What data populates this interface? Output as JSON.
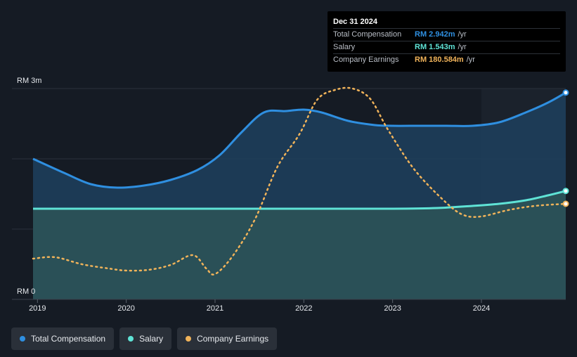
{
  "colors": {
    "background": "#151b24",
    "total_compensation": "#2f8fe0",
    "salary": "#5fe3d6",
    "company_earnings": "#f0b35a",
    "forecast_shade": "#1b222c"
  },
  "tooltip": {
    "date": "Dec 31 2024",
    "rows": [
      {
        "label": "Total Compensation",
        "value": "RM 2.942m",
        "unit": "/yr",
        "color": "#2f8fe0"
      },
      {
        "label": "Salary",
        "value": "RM 1.543m",
        "unit": "/yr",
        "color": "#5fe3d6"
      },
      {
        "label": "Company Earnings",
        "value": "RM 180.584m",
        "unit": "/yr",
        "color": "#f0b35a"
      }
    ]
  },
  "legend": [
    {
      "label": "Total Compensation",
      "color": "#2f8fe0"
    },
    {
      "label": "Salary",
      "color": "#5fe3d6"
    },
    {
      "label": "Company Earnings",
      "color": "#f0b35a"
    }
  ],
  "chart_data": {
    "type": "area",
    "y_axis_labels": {
      "top": "RM 3m",
      "bottom": "RM 0"
    },
    "ylim_millions": [
      0,
      3
    ],
    "xlim": [
      2018.95,
      2024.95
    ],
    "x_ticks": [
      2019,
      2020,
      2021,
      2022,
      2023,
      2024
    ],
    "x_tick_labels": [
      "2019",
      "2020",
      "2021",
      "2022",
      "2023",
      "2024"
    ],
    "forecast_region_start": 2024.0,
    "series": [
      {
        "name": "Total Compensation",
        "unit": "RM m",
        "x": [
          2018.95,
          2019.3,
          2019.6,
          2019.9,
          2020.2,
          2020.5,
          2020.8,
          2021.05,
          2021.3,
          2021.55,
          2021.8,
          2022.0,
          2022.2,
          2022.5,
          2022.8,
          2023.0,
          2023.3,
          2023.6,
          2023.9,
          2024.2,
          2024.5,
          2024.75,
          2024.95
        ],
        "values": [
          2.0,
          1.8,
          1.64,
          1.59,
          1.62,
          1.7,
          1.84,
          2.05,
          2.38,
          2.66,
          2.68,
          2.7,
          2.66,
          2.54,
          2.48,
          2.47,
          2.47,
          2.47,
          2.47,
          2.52,
          2.66,
          2.8,
          2.942
        ]
      },
      {
        "name": "Salary",
        "unit": "RM m",
        "x": [
          2018.95,
          2020.0,
          2021.0,
          2022.0,
          2023.0,
          2023.5,
          2023.9,
          2024.2,
          2024.5,
          2024.75,
          2024.95
        ],
        "values": [
          1.29,
          1.29,
          1.29,
          1.29,
          1.29,
          1.3,
          1.33,
          1.36,
          1.41,
          1.48,
          1.543
        ]
      },
      {
        "name": "Company Earnings",
        "unit": "scaled",
        "x": [
          2018.95,
          2019.2,
          2019.5,
          2019.8,
          2020.0,
          2020.25,
          2020.5,
          2020.75,
          2020.9,
          2021.0,
          2021.2,
          2021.45,
          2021.7,
          2021.95,
          2022.15,
          2022.35,
          2022.55,
          2022.75,
          2022.95,
          2023.25,
          2023.6,
          2023.8,
          2024.0,
          2024.3,
          2024.6,
          2024.95
        ],
        "values": [
          0.58,
          0.6,
          0.5,
          0.44,
          0.41,
          0.42,
          0.49,
          0.63,
          0.44,
          0.36,
          0.62,
          1.14,
          1.88,
          2.35,
          2.84,
          2.98,
          3.0,
          2.85,
          2.41,
          1.84,
          1.38,
          1.2,
          1.18,
          1.27,
          1.33,
          1.36
        ]
      }
    ]
  }
}
